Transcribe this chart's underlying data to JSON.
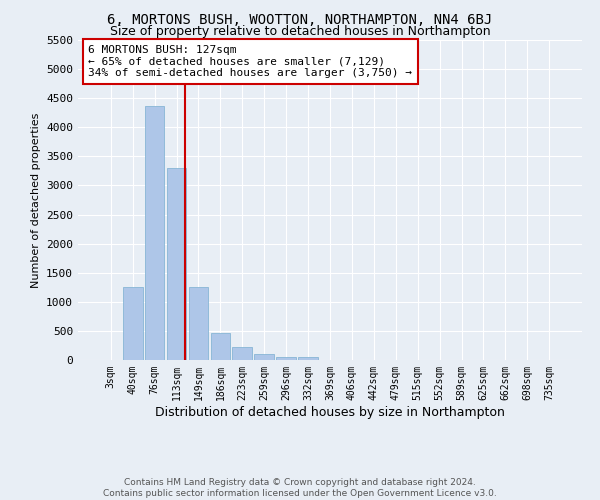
{
  "title": "6, MORTONS BUSH, WOOTTON, NORTHAMPTON, NN4 6BJ",
  "subtitle": "Size of property relative to detached houses in Northampton",
  "xlabel": "Distribution of detached houses by size in Northampton",
  "ylabel": "Number of detached properties",
  "footer": "Contains HM Land Registry data © Crown copyright and database right 2024.\nContains public sector information licensed under the Open Government Licence v3.0.",
  "categories": [
    "3sqm",
    "40sqm",
    "76sqm",
    "113sqm",
    "149sqm",
    "186sqm",
    "223sqm",
    "259sqm",
    "296sqm",
    "332sqm",
    "369sqm",
    "406sqm",
    "442sqm",
    "479sqm",
    "515sqm",
    "552sqm",
    "589sqm",
    "625sqm",
    "662sqm",
    "698sqm",
    "735sqm"
  ],
  "values": [
    0,
    1260,
    4360,
    3300,
    1260,
    470,
    215,
    95,
    60,
    50,
    0,
    0,
    0,
    0,
    0,
    0,
    0,
    0,
    0,
    0,
    0
  ],
  "bar_color": "#aec6e8",
  "bar_edge_color": "#7aaed0",
  "vline_color": "#cc0000",
  "annotation_text": "6 MORTONS BUSH: 127sqm\n← 65% of detached houses are smaller (7,129)\n34% of semi-detached houses are larger (3,750) →",
  "annotation_box_color": "#ffffff",
  "annotation_box_edge": "#cc0000",
  "ylim": [
    0,
    5500
  ],
  "yticks": [
    0,
    500,
    1000,
    1500,
    2000,
    2500,
    3000,
    3500,
    4000,
    4500,
    5000,
    5500
  ],
  "background_color": "#e8eef5",
  "plot_background": "#e8eef5",
  "grid_color": "#ffffff",
  "title_fontsize": 10,
  "subtitle_fontsize": 9,
  "footer_fontsize": 6.5
}
